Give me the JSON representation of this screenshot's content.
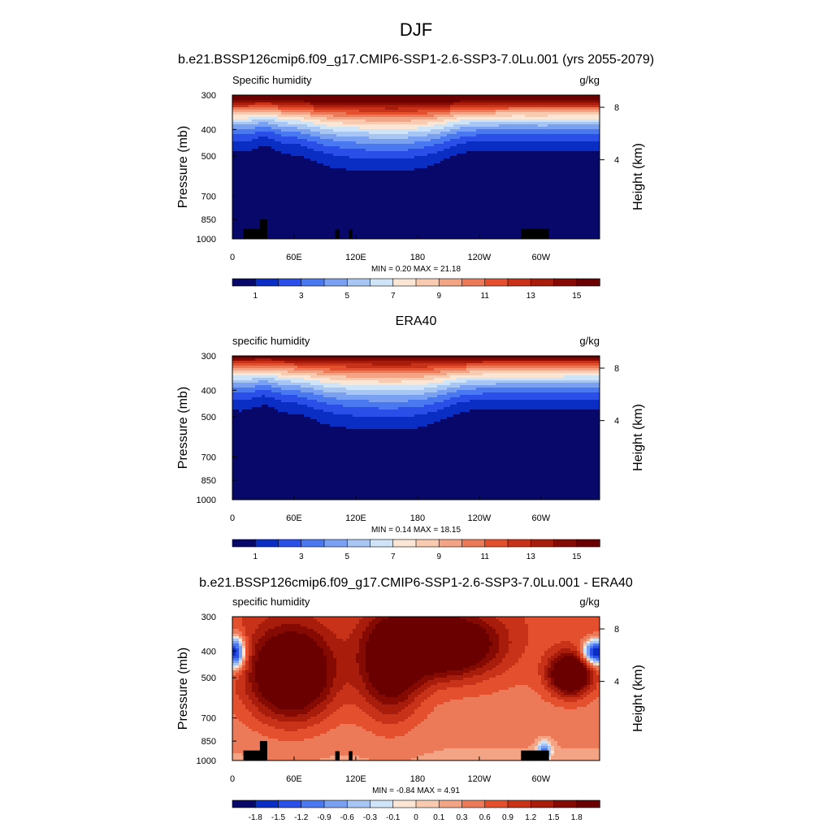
{
  "page": {
    "title": "DJF"
  },
  "chart_data": [
    {
      "type": "heatmap",
      "title": "b.e21.BSSP126cmip6.f09_g17.CMIP6-SSP1-2.6-SSP3-7.0Lu.001 (yrs 2055-2079)",
      "left_label": "Specific humidity",
      "right_label": "g/kg",
      "ylabel": "Pressure (mb)",
      "ylabel_right": "Height (km)",
      "x_ticks": [
        "0",
        "60E",
        "120E",
        "180",
        "120W",
        "60W"
      ],
      "y_ticks": [
        "300",
        "400",
        "500",
        "700",
        "850",
        "1000"
      ],
      "y_ticks_right": [
        "8",
        "4"
      ],
      "ylim": [
        1000,
        300
      ],
      "y_log_scale": true,
      "stats": "MIN =   0.20  MAX =  21.18",
      "min": 0.2,
      "max": 21.18,
      "colorbar_labels": [
        "1",
        "3",
        "5",
        "7",
        "9",
        "11",
        "13",
        "15"
      ],
      "colorbar_levels": [
        0.5,
        1,
        2,
        3,
        4,
        5,
        6,
        7,
        8,
        9,
        10,
        11,
        12,
        13,
        14,
        15
      ],
      "colorbar_colors": [
        "#08086b",
        "#0a2ec4",
        "#2a4ee8",
        "#4a78f0",
        "#7aa0f2",
        "#a8c6f4",
        "#d0e4f8",
        "#fbe6d6",
        "#f8cab0",
        "#f2a485",
        "#ec7a58",
        "#e44f2e",
        "#c83218",
        "#a81c0c",
        "#860a04",
        "#6a0000"
      ],
      "topography_mask": true
    },
    {
      "type": "heatmap",
      "title": "ERA40",
      "left_label": "specific humidity",
      "right_label": "g/kg",
      "ylabel": "Pressure (mb)",
      "ylabel_right": "Height (km)",
      "x_ticks": [
        "0",
        "60E",
        "120E",
        "180",
        "120W",
        "60W"
      ],
      "y_ticks": [
        "300",
        "400",
        "500",
        "700",
        "850",
        "1000"
      ],
      "y_ticks_right": [
        "8",
        "4"
      ],
      "ylim": [
        1000,
        300
      ],
      "y_log_scale": true,
      "stats": "MIN =   0.14  MAX =  18.15",
      "min": 0.14,
      "max": 18.15,
      "colorbar_labels": [
        "1",
        "3",
        "5",
        "7",
        "9",
        "11",
        "13",
        "15"
      ],
      "colorbar_levels": [
        0.5,
        1,
        2,
        3,
        4,
        5,
        6,
        7,
        8,
        9,
        10,
        11,
        12,
        13,
        14,
        15
      ],
      "colorbar_colors": [
        "#08086b",
        "#0a2ec4",
        "#2a4ee8",
        "#4a78f0",
        "#7aa0f2",
        "#a8c6f4",
        "#d0e4f8",
        "#fbe6d6",
        "#f8cab0",
        "#f2a485",
        "#ec7a58",
        "#e44f2e",
        "#c83218",
        "#a81c0c",
        "#860a04",
        "#6a0000"
      ],
      "topography_mask": false
    },
    {
      "type": "heatmap",
      "title": "b.e21.BSSP126cmip6.f09_g17.CMIP6-SSP1-2.6-SSP3-7.0Lu.001 - ERA40",
      "left_label": "specific humidity",
      "right_label": "g/kg",
      "ylabel": "Pressure (mb)",
      "ylabel_right": "Height (km)",
      "x_ticks": [
        "0",
        "60E",
        "120E",
        "180",
        "120W",
        "60W"
      ],
      "y_ticks": [
        "300",
        "400",
        "500",
        "700",
        "850",
        "1000"
      ],
      "y_ticks_right": [
        "8",
        "4"
      ],
      "ylim": [
        1000,
        300
      ],
      "y_log_scale": true,
      "stats": "MIN =  -0.84  MAX =   4.91",
      "min": -0.84,
      "max": 4.91,
      "colorbar_labels": [
        "-1.8",
        "-1.5",
        "-1.2",
        "-0.9",
        "-0.6",
        "-0.3",
        "-0.1",
        "0",
        "0.1",
        "0.3",
        "0.6",
        "0.9",
        "1.2",
        "1.5",
        "1.8"
      ],
      "colorbar_levels": [
        -2.1,
        -1.8,
        -1.5,
        -1.2,
        -0.9,
        -0.6,
        -0.3,
        -0.1,
        0,
        0.1,
        0.3,
        0.6,
        0.9,
        1.2,
        1.5,
        1.8
      ],
      "colorbar_colors": [
        "#08086b",
        "#0a2ec4",
        "#2a4ee8",
        "#4a78f0",
        "#7aa0f2",
        "#a8c6f4",
        "#d0e4f8",
        "#fbe6d6",
        "#f8cab0",
        "#f2a485",
        "#ec7a58",
        "#e44f2e",
        "#c83218",
        "#a81c0c",
        "#860a04",
        "#6a0000"
      ],
      "topography_mask": true
    }
  ]
}
